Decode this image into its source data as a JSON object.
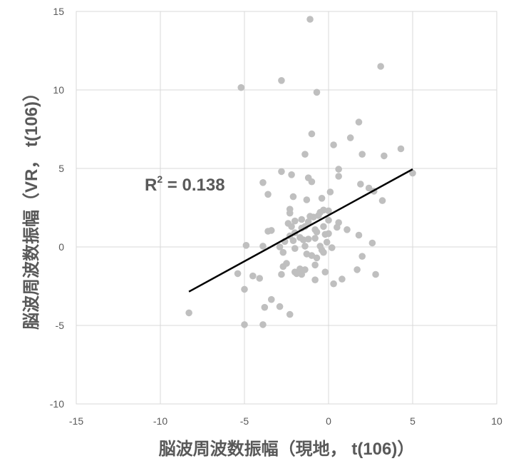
{
  "chart_data": {
    "type": "scatter",
    "xlabel": "脳波周波数振幅（現地， t(106)）",
    "ylabel": "脳波周波数振幅（VR， t(106)）",
    "xlim": [
      -15,
      10
    ],
    "ylim": [
      -10,
      15
    ],
    "xticks": [
      "-15",
      "-10",
      "-5",
      "0",
      "5",
      "10"
    ],
    "yticks": [
      "-10",
      "-5",
      "0",
      "5",
      "10",
      "15"
    ],
    "grid": true,
    "point_color": "#bfbfbf",
    "trendline": {
      "x": [
        -8.3,
        5.0
      ],
      "y": [
        -2.85,
        4.95
      ],
      "color": "#000000"
    },
    "annotation": {
      "base": "R",
      "sup": "2",
      "rest": " = 0.138"
    },
    "points": [
      {
        "x": -1.1,
        "y": 14.5
      },
      {
        "x": 3.1,
        "y": 11.5
      },
      {
        "x": -5.2,
        "y": 10.15
      },
      {
        "x": -2.8,
        "y": 10.6
      },
      {
        "x": -0.7,
        "y": 9.85
      },
      {
        "x": 1.8,
        "y": 7.95
      },
      {
        "x": -1.0,
        "y": 7.2
      },
      {
        "x": 1.3,
        "y": 6.95
      },
      {
        "x": 0.3,
        "y": 6.5
      },
      {
        "x": 4.3,
        "y": 6.25
      },
      {
        "x": -1.4,
        "y": 5.9
      },
      {
        "x": 2.0,
        "y": 5.9
      },
      {
        "x": 3.3,
        "y": 5.8
      },
      {
        "x": 0.6,
        "y": 4.95
      },
      {
        "x": -2.8,
        "y": 4.8
      },
      {
        "x": 5.0,
        "y": 4.7
      },
      {
        "x": -2.2,
        "y": 4.6
      },
      {
        "x": 0.6,
        "y": 4.5
      },
      {
        "x": -1.2,
        "y": 4.4
      },
      {
        "x": -1.0,
        "y": 4.15
      },
      {
        "x": -3.9,
        "y": 4.1
      },
      {
        "x": 1.9,
        "y": 4.0
      },
      {
        "x": 2.4,
        "y": 3.75
      },
      {
        "x": 0.1,
        "y": 3.5
      },
      {
        "x": 2.7,
        "y": 3.55
      },
      {
        "x": -3.6,
        "y": 3.35
      },
      {
        "x": -2.1,
        "y": 3.2
      },
      {
        "x": -0.4,
        "y": 3.1
      },
      {
        "x": -1.3,
        "y": 3.0
      },
      {
        "x": 3.2,
        "y": 2.95
      },
      {
        "x": -2.3,
        "y": 2.4
      },
      {
        "x": -0.3,
        "y": 2.35
      },
      {
        "x": 0.0,
        "y": 2.3
      },
      {
        "x": -0.5,
        "y": 2.2
      },
      {
        "x": -2.3,
        "y": 2.15
      },
      {
        "x": -0.6,
        "y": 2.0
      },
      {
        "x": -1.1,
        "y": 1.95
      },
      {
        "x": -0.9,
        "y": 1.9
      },
      {
        "x": -1.6,
        "y": 1.75
      },
      {
        "x": -2.0,
        "y": 1.65
      },
      {
        "x": 0.0,
        "y": 1.7
      },
      {
        "x": -1.2,
        "y": 1.6
      },
      {
        "x": -2.4,
        "y": 1.5
      },
      {
        "x": 0.6,
        "y": 1.55
      },
      {
        "x": -2.2,
        "y": 1.3
      },
      {
        "x": -1.4,
        "y": 1.3
      },
      {
        "x": -0.3,
        "y": 1.3
      },
      {
        "x": 0.5,
        "y": 1.25
      },
      {
        "x": -1.6,
        "y": 1.2
      },
      {
        "x": -0.8,
        "y": 1.1
      },
      {
        "x": 1.1,
        "y": 1.1
      },
      {
        "x": -3.4,
        "y": 1.05
      },
      {
        "x": -3.6,
        "y": 1.0
      },
      {
        "x": -0.7,
        "y": 0.95
      },
      {
        "x": -2.0,
        "y": 0.9
      },
      {
        "x": 0.0,
        "y": 0.85
      },
      {
        "x": -0.2,
        "y": 0.8
      },
      {
        "x": 1.8,
        "y": 0.75
      },
      {
        "x": -2.3,
        "y": 0.7
      },
      {
        "x": -1.7,
        "y": 0.6
      },
      {
        "x": -0.8,
        "y": 0.55
      },
      {
        "x": -1.2,
        "y": 0.5
      },
      {
        "x": -1.5,
        "y": 0.45
      },
      {
        "x": -2.1,
        "y": 0.4
      },
      {
        "x": -2.6,
        "y": 0.35
      },
      {
        "x": -0.1,
        "y": 0.3
      },
      {
        "x": 2.6,
        "y": 0.25
      },
      {
        "x": -4.9,
        "y": 0.1
      },
      {
        "x": -3.9,
        "y": 0.05
      },
      {
        "x": -1.4,
        "y": 0.05
      },
      {
        "x": -0.5,
        "y": 0.05
      },
      {
        "x": -2.9,
        "y": 0.0
      },
      {
        "x": 0.2,
        "y": -0.05
      },
      {
        "x": -2.0,
        "y": -0.1
      },
      {
        "x": -0.4,
        "y": -0.2
      },
      {
        "x": -2.7,
        "y": -0.35
      },
      {
        "x": -0.3,
        "y": -0.35
      },
      {
        "x": -1.3,
        "y": -0.45
      },
      {
        "x": -1.0,
        "y": -0.55
      },
      {
        "x": 2.0,
        "y": -0.6
      },
      {
        "x": -0.7,
        "y": -0.7
      },
      {
        "x": -2.5,
        "y": -1.05
      },
      {
        "x": -0.8,
        "y": -1.15
      },
      {
        "x": -2.7,
        "y": -1.25
      },
      {
        "x": -1.7,
        "y": -1.4
      },
      {
        "x": -1.4,
        "y": -1.45
      },
      {
        "x": 1.7,
        "y": -1.45
      },
      {
        "x": -0.2,
        "y": -1.6
      },
      {
        "x": -2.0,
        "y": -1.6
      },
      {
        "x": -1.9,
        "y": -1.7
      },
      {
        "x": -5.4,
        "y": -1.7
      },
      {
        "x": -1.6,
        "y": -1.75
      },
      {
        "x": -2.8,
        "y": -1.75
      },
      {
        "x": 2.8,
        "y": -1.75
      },
      {
        "x": -4.5,
        "y": -1.85
      },
      {
        "x": -4.1,
        "y": -2.0
      },
      {
        "x": 0.8,
        "y": -2.05
      },
      {
        "x": -0.8,
        "y": -2.1
      },
      {
        "x": 0.3,
        "y": -2.35
      },
      {
        "x": -5.0,
        "y": -2.7
      },
      {
        "x": -3.4,
        "y": -3.35
      },
      {
        "x": -2.9,
        "y": -3.8
      },
      {
        "x": -3.8,
        "y": -3.85
      },
      {
        "x": -8.3,
        "y": -4.2
      },
      {
        "x": -2.3,
        "y": -4.3
      },
      {
        "x": -5.0,
        "y": -4.95
      },
      {
        "x": -3.9,
        "y": -4.95
      }
    ]
  }
}
